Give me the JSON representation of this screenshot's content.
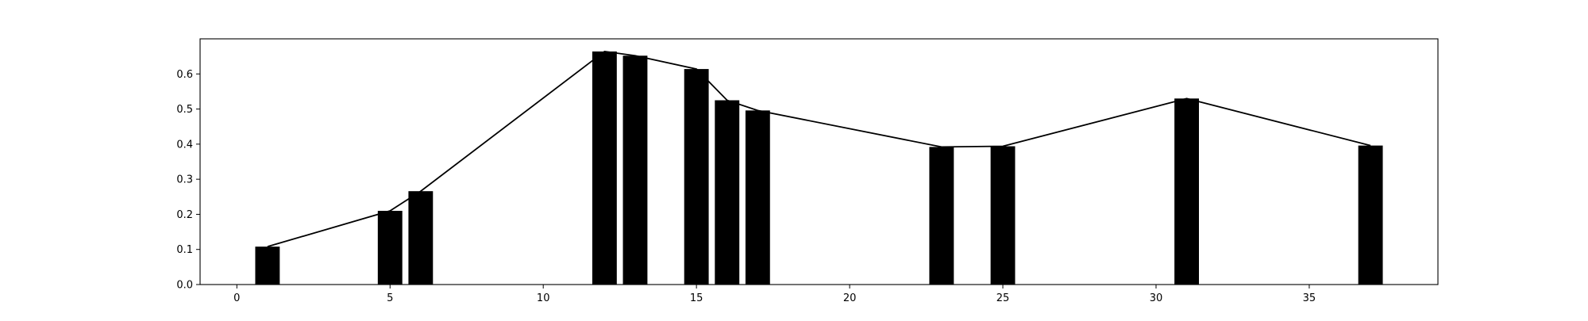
{
  "chart_data": {
    "type": "bar",
    "title": "",
    "xlabel": "",
    "ylabel": "",
    "xlim": [
      -1.2,
      39.2
    ],
    "ylim": [
      0,
      0.7
    ],
    "grid": false,
    "legend": "none",
    "x_ticks": [
      0,
      5,
      10,
      15,
      20,
      25,
      30,
      35
    ],
    "y_ticks": [
      0.0,
      0.1,
      0.2,
      0.3,
      0.4,
      0.5,
      0.6
    ],
    "y_tick_labels": [
      "0.0",
      "0.1",
      "0.2",
      "0.3",
      "0.4",
      "0.5",
      "0.6"
    ],
    "bar_width": 0.8,
    "series": [
      {
        "type": "bar",
        "x": [
          1,
          5,
          6,
          12,
          13,
          15,
          16,
          17,
          23,
          25,
          31,
          37
        ],
        "values": [
          0.108,
          0.21,
          0.266,
          0.664,
          0.652,
          0.614,
          0.525,
          0.496,
          0.392,
          0.394,
          0.53,
          0.396
        ]
      },
      {
        "type": "line",
        "x": [
          1,
          5,
          6,
          12,
          13,
          15,
          16,
          17,
          23,
          25,
          31,
          37
        ],
        "values": [
          0.108,
          0.21,
          0.266,
          0.664,
          0.652,
          0.614,
          0.525,
          0.496,
          0.392,
          0.394,
          0.53,
          0.396
        ]
      }
    ],
    "colors": {
      "bar": "#000000",
      "line": "#000000",
      "axes": "#000000"
    }
  }
}
